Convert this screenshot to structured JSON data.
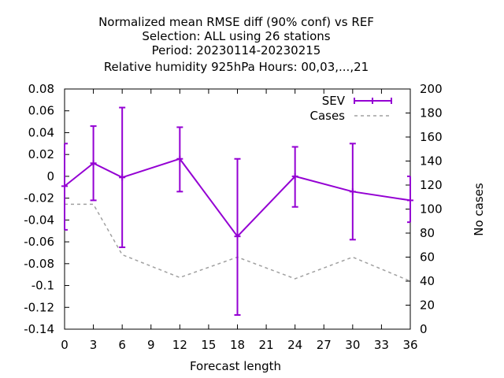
{
  "chart_data": {
    "type": "line",
    "title_lines": [
      "Normalized mean RMSE diff (90% conf) vs REF",
      "Selection: ALL using    26 stations",
      "Period: 20230114-20230215",
      "Relative humidity 925hPa   Hours:  00,03,...,21"
    ],
    "xlabel": "Forecast length",
    "ylabel_right": "No cases",
    "xlim": [
      0,
      36
    ],
    "ylim": [
      -0.14,
      0.08
    ],
    "y2lim": [
      0,
      200
    ],
    "x_ticks": [
      "0",
      "3",
      "6",
      "9",
      "12",
      "15",
      "18",
      "21",
      "24",
      "27",
      "30",
      "33",
      "36"
    ],
    "y_ticks": [
      "0.08",
      "0.06",
      "0.04",
      "0.02",
      "0",
      "-0.02",
      "-0.04",
      "-0.06",
      "-0.08",
      "-0.1",
      "-0.12",
      "-0.14"
    ],
    "y2_ticks": [
      "200",
      "180",
      "160",
      "140",
      "120",
      "100",
      "80",
      "60",
      "40",
      "20",
      "0"
    ],
    "legend_position": "top-right",
    "series": [
      {
        "name": "SEV",
        "color": "#9400d3",
        "axis": "left",
        "points": [
          {
            "x": 0,
            "y": -0.009,
            "lo": -0.049,
            "hi": 0.03
          },
          {
            "x": 3,
            "y": 0.012,
            "lo": -0.022,
            "hi": 0.046
          },
          {
            "x": 6,
            "y": -0.001,
            "lo": -0.065,
            "hi": 0.063
          },
          {
            "x": 12,
            "y": 0.016,
            "lo": -0.014,
            "hi": 0.045
          },
          {
            "x": 18,
            "y": -0.055,
            "lo": -0.127,
            "hi": 0.016
          },
          {
            "x": 24,
            "y": 0.0,
            "lo": -0.028,
            "hi": 0.027
          },
          {
            "x": 30,
            "y": -0.014,
            "lo": -0.058,
            "hi": 0.03
          },
          {
            "x": 36,
            "y": -0.022,
            "lo": -0.042,
            "hi": 0.0
          }
        ]
      },
      {
        "name": "Cases",
        "color": "#a0a0a0",
        "axis": "right",
        "dashed": true,
        "points": [
          {
            "x": 0,
            "y": 104
          },
          {
            "x": 3,
            "y": 104
          },
          {
            "x": 6,
            "y": 62
          },
          {
            "x": 12,
            "y": 43
          },
          {
            "x": 18,
            "y": 60
          },
          {
            "x": 24,
            "y": 42
          },
          {
            "x": 30,
            "y": 60
          },
          {
            "x": 36,
            "y": 40
          }
        ]
      }
    ]
  }
}
